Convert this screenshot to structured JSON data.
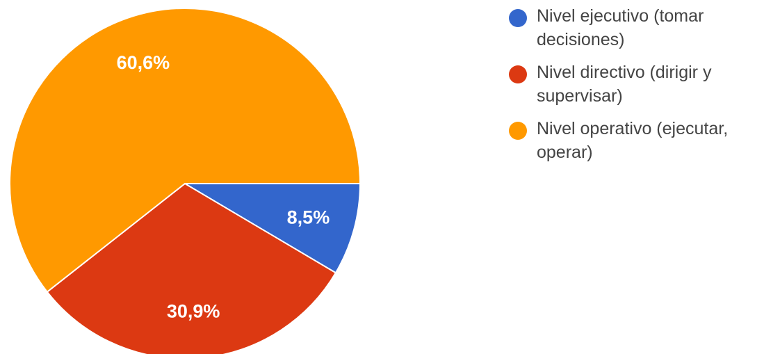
{
  "chart_data": {
    "type": "pie",
    "title": "",
    "legend_position": "right",
    "start_angle_deg": 0,
    "direction": "clockwise",
    "slices": [
      {
        "label": "Nivel ejecutivo (tomar\ndecisiones)",
        "value": 8.5,
        "display": "8,5%",
        "color": "#3366cc"
      },
      {
        "label": "Nivel directivo (dirigir y\nsupervisar)",
        "value": 30.9,
        "display": "30,9%",
        "color": "#dc3912"
      },
      {
        "label": "Nivel operativo (ejecutar,\noperar)",
        "value": 60.6,
        "display": "60,6%",
        "color": "#ff9900"
      }
    ]
  }
}
